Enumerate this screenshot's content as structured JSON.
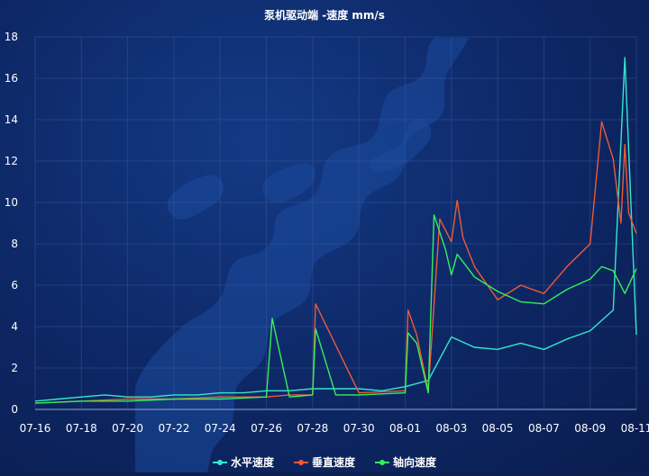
{
  "chart_data": {
    "type": "line",
    "title": "泵机驱动端 -速度 mm/s",
    "xlabel": "",
    "ylabel": "",
    "ylim": [
      0,
      18
    ],
    "y_ticks": [
      "0",
      "2",
      "4",
      "6",
      "8",
      "10",
      "12",
      "14",
      "16",
      "18"
    ],
    "x_range": [
      "2023-07-16",
      "2023-08-11"
    ],
    "x_ticks": [
      "07-16",
      "07-18",
      "07-20",
      "07-22",
      "07-24",
      "07-26",
      "07-28",
      "07-30",
      "08-01",
      "08-03",
      "08-05",
      "08-07",
      "08-09",
      "08-11"
    ],
    "grid": true,
    "legend_position": "bottom",
    "series": [
      {
        "name": "水平速度",
        "color": "#35e6cc",
        "x": [
          "07-16",
          "07-17",
          "07-18",
          "07-19",
          "07-20",
          "07-21",
          "07-22",
          "07-23",
          "07-24",
          "07-25",
          "07-26",
          "07-27",
          "07-28",
          "07-29",
          "07-30",
          "07-31",
          "08-01",
          "08-02",
          "08-03",
          "08-04",
          "08-05",
          "08-06",
          "08-07",
          "08-08",
          "08-09",
          "08-10",
          "08-10 12:00",
          "08-11"
        ],
        "values": [
          0.4,
          0.5,
          0.6,
          0.7,
          0.6,
          0.6,
          0.7,
          0.7,
          0.8,
          0.8,
          0.9,
          0.9,
          1.0,
          1.0,
          1.0,
          0.9,
          1.1,
          1.4,
          3.5,
          3.0,
          2.9,
          3.2,
          2.9,
          3.4,
          3.8,
          4.8,
          17.0,
          3.6
        ]
      },
      {
        "name": "垂直速度",
        "color": "#ef5a36",
        "x": [
          "07-16",
          "07-18",
          "07-20",
          "07-22",
          "07-24",
          "07-26",
          "07-27",
          "07-28",
          "07-28 03:00",
          "07-30",
          "08-01",
          "08-01 03:00",
          "08-01 12:00",
          "08-02",
          "08-02 12:00",
          "08-03",
          "08-03 06:00",
          "08-03 12:00",
          "08-04",
          "08-05",
          "08-06",
          "08-07",
          "08-08",
          "08-09",
          "08-09 12:00",
          "08-10",
          "08-10 08:00",
          "08-10 12:00",
          "08-10 16:00",
          "08-11"
        ],
        "values": [
          0.3,
          0.4,
          0.5,
          0.5,
          0.6,
          0.6,
          0.7,
          0.7,
          5.1,
          0.8,
          0.9,
          4.8,
          3.6,
          0.9,
          9.2,
          8.1,
          10.1,
          8.3,
          6.9,
          5.3,
          6.0,
          5.6,
          6.9,
          8.0,
          13.9,
          12.1,
          9.0,
          12.8,
          9.5,
          8.5
        ]
      },
      {
        "name": "轴向速度",
        "color": "#34f05a",
        "x": [
          "07-16",
          "07-18",
          "07-20",
          "07-22",
          "07-24",
          "07-26",
          "07-26 06:00",
          "07-27",
          "07-28",
          "07-28 03:00",
          "07-29",
          "07-30",
          "08-01",
          "08-01 03:00",
          "08-01 12:00",
          "08-02",
          "08-02 06:00",
          "08-02 18:00",
          "08-03",
          "08-03 06:00",
          "08-04",
          "08-05",
          "08-06",
          "08-07",
          "08-08",
          "08-09",
          "08-09 12:00",
          "08-10",
          "08-10 12:00",
          "08-11"
        ],
        "values": [
          0.3,
          0.4,
          0.4,
          0.5,
          0.5,
          0.6,
          4.4,
          0.6,
          0.7,
          3.9,
          0.7,
          0.7,
          0.8,
          3.7,
          3.2,
          0.8,
          9.4,
          7.7,
          6.5,
          7.5,
          6.4,
          5.7,
          5.2,
          5.1,
          5.8,
          6.3,
          6.9,
          6.7,
          5.6,
          6.8
        ]
      }
    ]
  }
}
